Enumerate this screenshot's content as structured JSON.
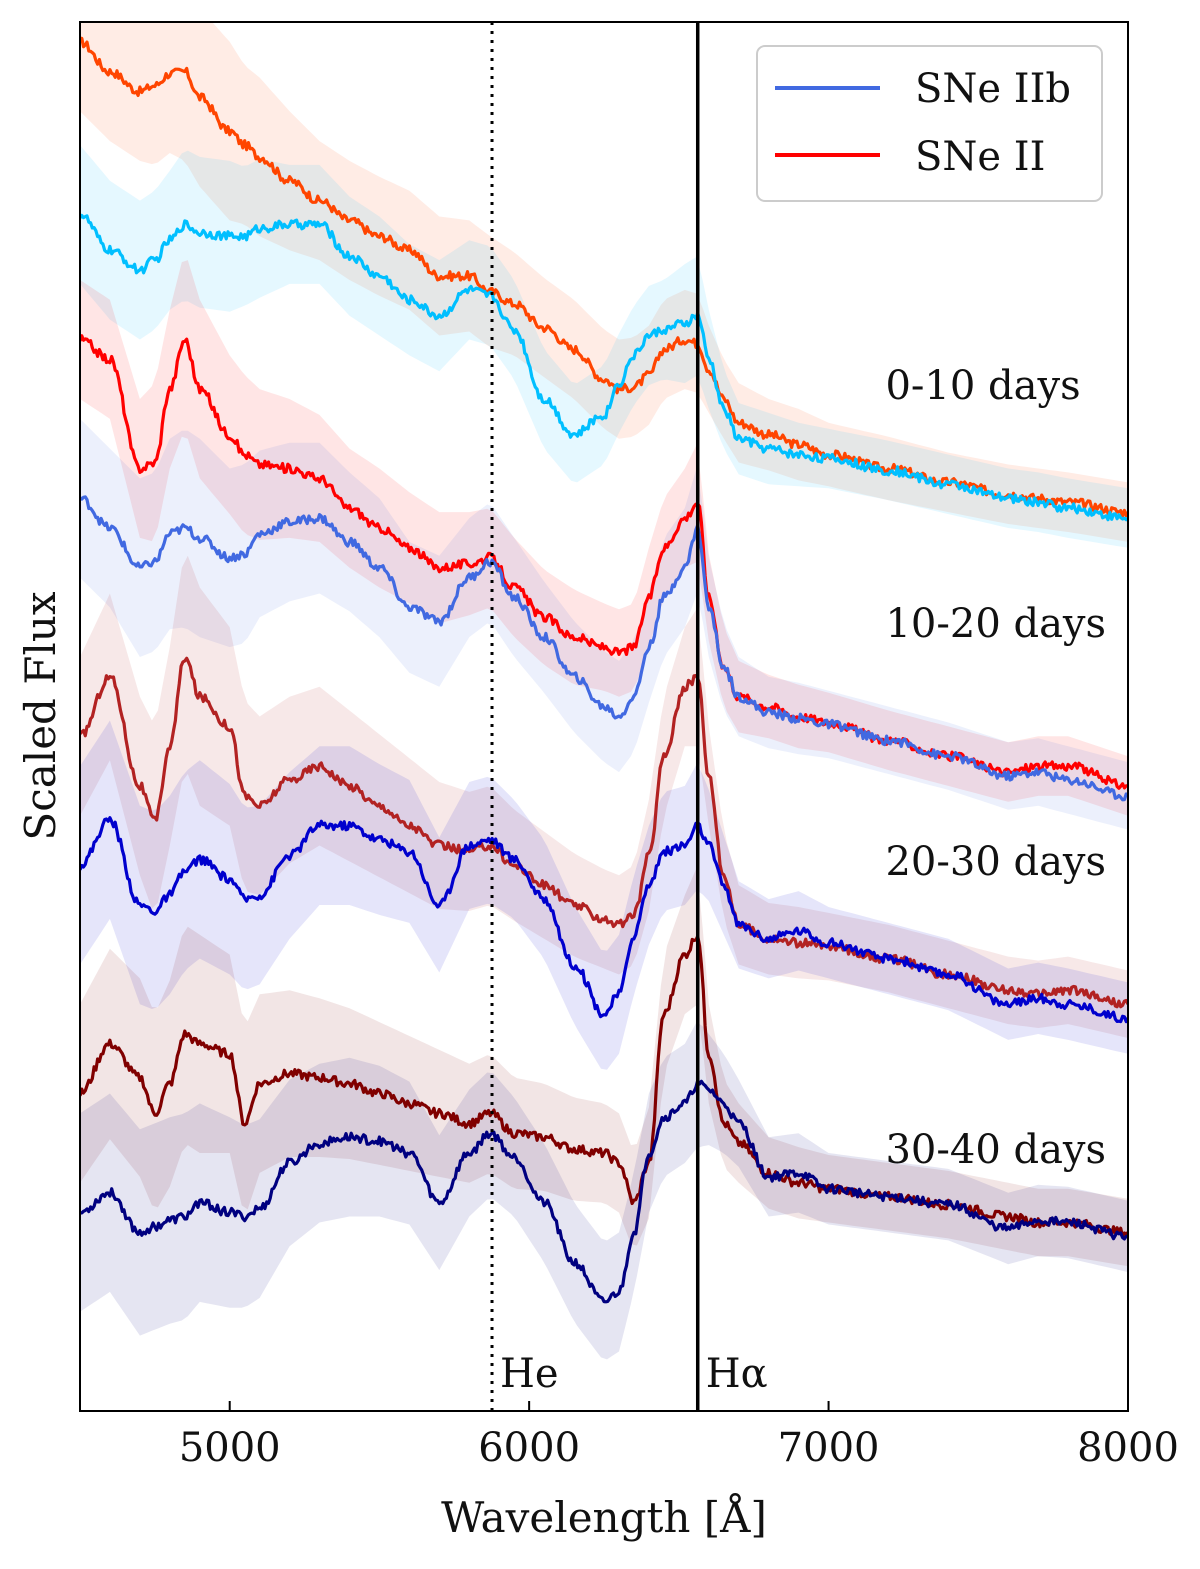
{
  "chart_data": {
    "type": "line",
    "xlabel": "Wavelength [Å]",
    "ylabel": "Scaled Flux",
    "xlim": [
      4500,
      8000
    ],
    "ylim": [
      0,
      7
    ],
    "xticks": [
      5000,
      6000,
      7000,
      8000
    ],
    "grid": false,
    "legend": {
      "position": "top-right",
      "entries": [
        {
          "label": "SNe IIb",
          "color": "#4169e1"
        },
        {
          "label": "SNe II",
          "color": "#ff0000"
        }
      ]
    },
    "reference_lines": [
      {
        "label": "He",
        "x": 5876,
        "style": "dotted"
      },
      {
        "label": "Hα",
        "x": 6563,
        "style": "solid"
      }
    ],
    "epoch_labels": [
      {
        "text": "0-10 days",
        "x": 7190,
        "y": 5.1
      },
      {
        "text": "10-20 days",
        "x": 7190,
        "y": 3.9
      },
      {
        "text": "20-30 days",
        "x": 7190,
        "y": 2.7
      },
      {
        "text": "30-40 days",
        "x": 7190,
        "y": 1.25
      }
    ],
    "x": [
      4500,
      4600,
      4700,
      4750,
      4800,
      4850,
      4900,
      5000,
      5050,
      5100,
      5200,
      5300,
      5400,
      5500,
      5600,
      5700,
      5800,
      5870,
      5950,
      6050,
      6150,
      6250,
      6300,
      6350,
      6400,
      6450,
      6520,
      6563,
      6600,
      6650,
      6700,
      6800,
      6900,
      7000,
      7200,
      7400,
      7600,
      7700,
      7800,
      8000
    ],
    "series": [
      {
        "name": "SNe II 0-10 days",
        "group": "0-10 days",
        "type": "II",
        "color": "#ff4500",
        "values": [
          6.9,
          6.75,
          6.65,
          6.68,
          6.74,
          6.75,
          6.62,
          6.45,
          6.38,
          6.32,
          6.2,
          6.1,
          6.0,
          5.92,
          5.85,
          5.72,
          5.72,
          5.64,
          5.58,
          5.46,
          5.35,
          5.2,
          5.15,
          5.16,
          5.22,
          5.35,
          5.4,
          5.38,
          5.25,
          5.1,
          4.98,
          4.92,
          4.87,
          4.82,
          4.75,
          4.68,
          4.62,
          4.6,
          4.58,
          4.53
        ],
        "band": [
          0.35,
          0.35,
          0.35,
          0.4,
          0.4,
          0.45,
          0.45,
          0.45,
          0.4,
          0.4,
          0.35,
          0.3,
          0.3,
          0.3,
          0.3,
          0.3,
          0.28,
          0.28,
          0.26,
          0.25,
          0.25,
          0.25,
          0.25,
          0.25,
          0.25,
          0.25,
          0.25,
          0.25,
          0.22,
          0.2,
          0.2,
          0.18,
          0.18,
          0.16,
          0.16,
          0.15,
          0.15,
          0.15,
          0.15,
          0.15
        ]
      },
      {
        "name": "SNe IIb 0-10 days",
        "group": "0-10 days",
        "type": "IIb",
        "color": "#00bfff",
        "values": [
          6.03,
          5.85,
          5.75,
          5.8,
          5.9,
          5.98,
          5.94,
          5.92,
          5.92,
          5.96,
          5.98,
          5.98,
          5.82,
          5.72,
          5.6,
          5.52,
          5.65,
          5.62,
          5.45,
          5.1,
          4.92,
          5.02,
          5.18,
          5.32,
          5.42,
          5.45,
          5.48,
          5.52,
          5.3,
          5.05,
          4.9,
          4.85,
          4.82,
          4.8,
          4.74,
          4.67,
          4.6,
          4.58,
          4.55,
          4.5
        ],
        "band": [
          0.35,
          0.35,
          0.35,
          0.35,
          0.35,
          0.38,
          0.38,
          0.38,
          0.35,
          0.35,
          0.3,
          0.3,
          0.3,
          0.3,
          0.28,
          0.28,
          0.25,
          0.25,
          0.25,
          0.25,
          0.25,
          0.25,
          0.25,
          0.25,
          0.25,
          0.25,
          0.3,
          0.3,
          0.25,
          0.2,
          0.18,
          0.18,
          0.16,
          0.15,
          0.15,
          0.15,
          0.15,
          0.15,
          0.15,
          0.15
        ]
      },
      {
        "name": "SNe II 10-20 days",
        "group": "10-20 days",
        "type": "II",
        "color": "#ff0000",
        "values": [
          5.4,
          5.3,
          4.75,
          4.78,
          5.15,
          5.4,
          5.15,
          4.92,
          4.82,
          4.77,
          4.75,
          4.7,
          4.55,
          4.45,
          4.35,
          4.25,
          4.27,
          4.3,
          4.15,
          4.0,
          3.9,
          3.85,
          3.82,
          3.85,
          4.1,
          4.35,
          4.5,
          4.58,
          4.1,
          3.75,
          3.6,
          3.55,
          3.5,
          3.47,
          3.38,
          3.3,
          3.22,
          3.25,
          3.25,
          3.15
        ],
        "band": [
          0.3,
          0.3,
          0.35,
          0.4,
          0.4,
          0.45,
          0.45,
          0.4,
          0.4,
          0.38,
          0.35,
          0.32,
          0.3,
          0.3,
          0.28,
          0.28,
          0.26,
          0.25,
          0.25,
          0.24,
          0.24,
          0.22,
          0.22,
          0.22,
          0.25,
          0.25,
          0.25,
          0.3,
          0.22,
          0.2,
          0.18,
          0.16,
          0.16,
          0.15,
          0.15,
          0.15,
          0.15,
          0.15,
          0.15,
          0.15
        ]
      },
      {
        "name": "SNe IIb 10-20 days",
        "group": "10-20 days",
        "type": "IIb",
        "color": "#4169e1",
        "values": [
          4.6,
          4.45,
          4.25,
          4.28,
          4.42,
          4.45,
          4.4,
          4.3,
          4.32,
          4.42,
          4.48,
          4.5,
          4.38,
          4.25,
          4.05,
          3.98,
          4.2,
          4.28,
          4.1,
          3.9,
          3.7,
          3.55,
          3.5,
          3.6,
          3.85,
          4.1,
          4.25,
          4.45,
          4.05,
          3.75,
          3.6,
          3.52,
          3.49,
          3.46,
          3.38,
          3.3,
          3.2,
          3.22,
          3.18,
          3.1
        ],
        "band": [
          0.4,
          0.4,
          0.45,
          0.45,
          0.48,
          0.5,
          0.5,
          0.45,
          0.45,
          0.42,
          0.4,
          0.38,
          0.35,
          0.35,
          0.33,
          0.33,
          0.3,
          0.3,
          0.3,
          0.28,
          0.28,
          0.28,
          0.28,
          0.28,
          0.28,
          0.3,
          0.3,
          0.32,
          0.25,
          0.22,
          0.2,
          0.18,
          0.18,
          0.17,
          0.17,
          0.17,
          0.17,
          0.17,
          0.17,
          0.17
        ]
      },
      {
        "name": "SNe II 20-30 days",
        "group": "20-30 days",
        "type": "II",
        "color": "#b22222",
        "values": [
          3.4,
          3.7,
          3.15,
          2.97,
          3.35,
          3.8,
          3.6,
          3.45,
          3.1,
          3.05,
          3.18,
          3.25,
          3.15,
          3.05,
          2.95,
          2.85,
          2.82,
          2.85,
          2.75,
          2.65,
          2.55,
          2.48,
          2.45,
          2.5,
          2.8,
          3.3,
          3.65,
          3.7,
          3.2,
          2.7,
          2.45,
          2.38,
          2.36,
          2.34,
          2.28,
          2.2,
          2.12,
          2.1,
          2.12,
          2.05
        ],
        "band": [
          0.4,
          0.42,
          0.45,
          0.48,
          0.5,
          0.55,
          0.55,
          0.5,
          0.48,
          0.45,
          0.42,
          0.4,
          0.38,
          0.36,
          0.34,
          0.32,
          0.3,
          0.3,
          0.28,
          0.27,
          0.26,
          0.25,
          0.25,
          0.25,
          0.28,
          0.3,
          0.3,
          0.35,
          0.25,
          0.22,
          0.2,
          0.18,
          0.18,
          0.17,
          0.17,
          0.17,
          0.17,
          0.17,
          0.17,
          0.17
        ]
      },
      {
        "name": "SNe IIb 20-30 days",
        "group": "20-30 days",
        "type": "IIb",
        "color": "#0000cd",
        "values": [
          2.75,
          2.98,
          2.55,
          2.52,
          2.6,
          2.72,
          2.78,
          2.68,
          2.58,
          2.6,
          2.8,
          2.95,
          2.95,
          2.88,
          2.82,
          2.55,
          2.85,
          2.88,
          2.78,
          2.58,
          2.25,
          2.0,
          2.1,
          2.4,
          2.65,
          2.82,
          2.85,
          2.95,
          2.85,
          2.65,
          2.45,
          2.38,
          2.42,
          2.36,
          2.28,
          2.2,
          2.05,
          2.08,
          2.05,
          1.98
        ],
        "band": [
          0.5,
          0.5,
          0.5,
          0.5,
          0.5,
          0.5,
          0.5,
          0.48,
          0.46,
          0.45,
          0.42,
          0.4,
          0.4,
          0.38,
          0.36,
          0.34,
          0.32,
          0.32,
          0.3,
          0.3,
          0.3,
          0.3,
          0.3,
          0.3,
          0.3,
          0.3,
          0.3,
          0.32,
          0.28,
          0.25,
          0.22,
          0.2,
          0.2,
          0.18,
          0.18,
          0.18,
          0.18,
          0.18,
          0.18,
          0.18
        ]
      },
      {
        "name": "SNe II 30-40 days",
        "group": "30-40 days",
        "type": "II",
        "color": "#800000",
        "values": [
          1.6,
          1.85,
          1.68,
          1.5,
          1.65,
          1.9,
          1.85,
          1.8,
          1.45,
          1.65,
          1.7,
          1.68,
          1.65,
          1.6,
          1.55,
          1.5,
          1.45,
          1.5,
          1.4,
          1.38,
          1.32,
          1.3,
          1.25,
          1.05,
          1.25,
          2.0,
          2.3,
          2.4,
          1.8,
          1.45,
          1.35,
          1.2,
          1.15,
          1.12,
          1.08,
          1.04,
          0.98,
          0.95,
          0.95,
          0.9
        ],
        "band": [
          0.45,
          0.48,
          0.5,
          0.5,
          0.52,
          0.55,
          0.55,
          0.5,
          0.48,
          0.45,
          0.42,
          0.4,
          0.38,
          0.36,
          0.34,
          0.32,
          0.3,
          0.3,
          0.28,
          0.27,
          0.26,
          0.25,
          0.25,
          0.25,
          0.28,
          0.3,
          0.3,
          0.35,
          0.25,
          0.22,
          0.2,
          0.18,
          0.18,
          0.17,
          0.17,
          0.17,
          0.17,
          0.17,
          0.17,
          0.17
        ]
      },
      {
        "name": "SNe IIb 30-40 days",
        "group": "30-40 days",
        "type": "IIb",
        "color": "#000080",
        "values": [
          1.0,
          1.1,
          0.9,
          0.93,
          0.96,
          0.98,
          1.05,
          1.0,
          0.98,
          1.02,
          1.25,
          1.35,
          1.38,
          1.36,
          1.3,
          1.05,
          1.3,
          1.4,
          1.28,
          1.05,
          0.75,
          0.55,
          0.6,
          0.9,
          1.3,
          1.48,
          1.55,
          1.65,
          1.62,
          1.55,
          1.45,
          1.18,
          1.2,
          1.12,
          1.08,
          1.04,
          0.92,
          0.96,
          0.95,
          0.88
        ],
        "band": [
          0.5,
          0.5,
          0.52,
          0.52,
          0.52,
          0.52,
          0.5,
          0.48,
          0.46,
          0.45,
          0.42,
          0.4,
          0.4,
          0.38,
          0.36,
          0.34,
          0.32,
          0.32,
          0.3,
          0.3,
          0.3,
          0.3,
          0.3,
          0.3,
          0.3,
          0.3,
          0.3,
          0.32,
          0.28,
          0.25,
          0.22,
          0.2,
          0.2,
          0.18,
          0.18,
          0.18,
          0.18,
          0.18,
          0.18,
          0.18
        ]
      }
    ]
  }
}
